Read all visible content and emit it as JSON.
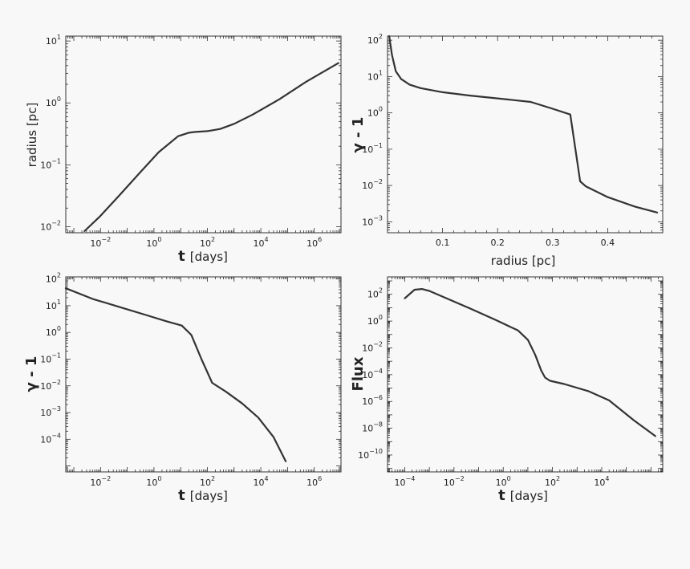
{
  "chart_data": [
    {
      "type": "line",
      "xlabel": "[days]",
      "xlabel_symbol": "t",
      "ylabel": "radius [pc]",
      "xscale": "log",
      "yscale": "log",
      "xlim": [
        0.0005,
        10000000
      ],
      "ylim": [
        0.008,
        12
      ],
      "xticks": [
        {
          "v": 0.01,
          "b": "10",
          "e": "−2"
        },
        {
          "v": 1,
          "b": "10",
          "e": "0"
        },
        {
          "v": 100,
          "b": "10",
          "e": "2"
        },
        {
          "v": 10000,
          "b": "10",
          "e": "4"
        },
        {
          "v": 1000000,
          "b": "10",
          "e": "6"
        }
      ],
      "yticks": [
        {
          "v": 0.01,
          "b": "10",
          "e": "−2"
        },
        {
          "v": 0.1,
          "b": "10",
          "e": "−1"
        },
        {
          "v": 1,
          "b": "10",
          "e": "0"
        },
        {
          "v": 10,
          "b": "10",
          "e": "1"
        }
      ],
      "series": [
        {
          "x": [
            0.0025,
            0.01,
            0.05,
            0.3,
            1.5,
            8,
            20,
            35,
            100,
            300,
            1000,
            5000,
            50000,
            500000,
            8000000
          ],
          "y": [
            0.0085,
            0.015,
            0.032,
            0.075,
            0.16,
            0.29,
            0.33,
            0.34,
            0.35,
            0.38,
            0.46,
            0.65,
            1.15,
            2.2,
            4.4
          ]
        }
      ]
    },
    {
      "type": "line",
      "xlabel": "radius [pc]",
      "ylabel": "γ - 1",
      "xscale": "linear",
      "yscale": "log",
      "xlim": [
        0,
        0.5
      ],
      "ylim": [
        0.0005,
        130
      ],
      "xticks": [
        {
          "v": 0.1,
          "t": "0.1"
        },
        {
          "v": 0.2,
          "t": "0.2"
        },
        {
          "v": 0.3,
          "t": "0.3"
        },
        {
          "v": 0.4,
          "t": "0.4"
        }
      ],
      "yticks": [
        {
          "v": 0.001,
          "b": "10",
          "e": "−3"
        },
        {
          "v": 0.01,
          "b": "10",
          "e": "−2"
        },
        {
          "v": 0.1,
          "b": "10",
          "e": "−1"
        },
        {
          "v": 1,
          "b": "10",
          "e": "0"
        },
        {
          "v": 10,
          "b": "10",
          "e": "1"
        },
        {
          "v": 100,
          "b": "10",
          "e": "2"
        }
      ],
      "series": [
        {
          "x": [
            0.003,
            0.008,
            0.015,
            0.025,
            0.04,
            0.06,
            0.1,
            0.15,
            0.2,
            0.26,
            0.3,
            0.332,
            0.35,
            0.36,
            0.4,
            0.45,
            0.49
          ],
          "y": [
            130,
            40,
            14,
            8.5,
            6,
            4.8,
            3.7,
            3.0,
            2.5,
            2.0,
            1.3,
            0.9,
            0.013,
            0.0095,
            0.0048,
            0.0026,
            0.0018
          ]
        }
      ]
    },
    {
      "type": "line",
      "xlabel": "[days]",
      "xlabel_symbol": "t",
      "ylabel": "γ - 1",
      "xscale": "log",
      "yscale": "log",
      "xlim": [
        0.0005,
        10000000
      ],
      "ylim": [
        6e-06,
        120
      ],
      "xticks": [
        {
          "v": 0.01,
          "b": "10",
          "e": "−2"
        },
        {
          "v": 1,
          "b": "10",
          "e": "0"
        },
        {
          "v": 100,
          "b": "10",
          "e": "2"
        },
        {
          "v": 10000,
          "b": "10",
          "e": "4"
        },
        {
          "v": 1000000,
          "b": "10",
          "e": "6"
        }
      ],
      "yticks": [
        {
          "v": 0.0001,
          "b": "10",
          "e": "−4"
        },
        {
          "v": 0.001,
          "b": "10",
          "e": "−3"
        },
        {
          "v": 0.01,
          "b": "10",
          "e": "−2"
        },
        {
          "v": 0.1,
          "b": "10",
          "e": "−1"
        },
        {
          "v": 1,
          "b": "10",
          "e": "0"
        },
        {
          "v": 10,
          "b": "10",
          "e": "1"
        },
        {
          "v": 100,
          "b": "10",
          "e": "2"
        }
      ],
      "series": [
        {
          "x": [
            0.0005,
            0.005,
            0.05,
            0.5,
            3,
            11,
            25,
            60,
            150,
            500,
            2000,
            8000,
            30000,
            85000
          ],
          "y": [
            45,
            18,
            9,
            4.5,
            2.6,
            1.8,
            0.8,
            0.1,
            0.013,
            0.006,
            0.0022,
            0.00065,
            0.00012,
            1.5e-05
          ]
        }
      ]
    },
    {
      "type": "line",
      "xlabel": "[days]",
      "xlabel_symbol": "t",
      "ylabel": "Flux",
      "xscale": "log",
      "yscale": "log",
      "xlim": [
        2e-05,
        3000000
      ],
      "ylim": [
        5.5e-12,
        2000
      ],
      "xticks": [
        {
          "v": 0.0001,
          "b": "10",
          "e": "−4"
        },
        {
          "v": 0.01,
          "b": "10",
          "e": "−2"
        },
        {
          "v": 1,
          "b": "10",
          "e": "0"
        },
        {
          "v": 100,
          "b": "10",
          "e": "2"
        },
        {
          "v": 10000,
          "b": "10",
          "e": "4"
        }
      ],
      "yticks": [
        {
          "v": 1e-10,
          "b": "10",
          "e": "−10"
        },
        {
          "v": 1e-08,
          "b": "10",
          "e": "−8"
        },
        {
          "v": 1e-06,
          "b": "10",
          "e": "−6"
        },
        {
          "v": 0.0001,
          "b": "10",
          "e": "−4"
        },
        {
          "v": 0.01,
          "b": "10",
          "e": "−2"
        },
        {
          "v": 1,
          "b": "10",
          "e": "0"
        },
        {
          "v": 100,
          "b": "10",
          "e": "2"
        }
      ],
      "series": [
        {
          "x": [
            0.0001,
            0.00025,
            0.0005,
            0.001,
            0.005,
            0.05,
            0.5,
            4,
            10,
            20,
            35,
            50,
            80,
            300,
            3000,
            20000,
            200000,
            1500000
          ],
          "y": [
            50,
            220,
            250,
            180,
            50,
            8,
            1.2,
            0.2,
            0.04,
            0.003,
            0.0002,
            6e-05,
            3.5e-05,
            2e-05,
            5.7e-06,
            1.2e-06,
            4e-08,
            2.6e-09
          ]
        }
      ]
    }
  ]
}
